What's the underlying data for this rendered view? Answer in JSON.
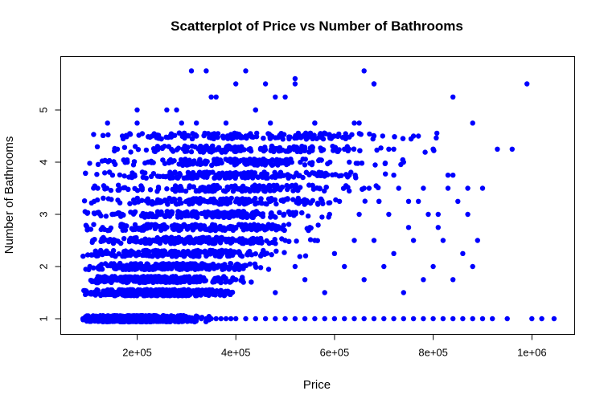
{
  "chart_data": {
    "type": "scatter",
    "title": "Scatterplot of Price vs Number of Bathrooms",
    "xlabel": "Price",
    "ylabel": "Number of Bathrooms",
    "xlim": [
      85000,
      1050000
    ],
    "ylim": [
      1,
      5.8
    ],
    "x_ticks": [
      200000,
      400000,
      600000,
      800000,
      1000000
    ],
    "x_tick_labels": [
      "2e+05",
      "4e+05",
      "6e+05",
      "8e+05",
      "1e+06"
    ],
    "y_ticks": [
      1,
      2,
      3,
      4,
      5
    ],
    "y_tick_labels": [
      "1",
      "2",
      "3",
      "4",
      "5"
    ],
    "point_color": "#0000ff",
    "grid": false,
    "legend": "none",
    "series": [
      {
        "x": [
          90000,
          95000,
          100000,
          105000,
          110000,
          115000,
          120000,
          130000,
          140000,
          150000,
          160000,
          170000,
          180000,
          190000,
          200000,
          210000,
          220000,
          230000,
          240000,
          250000,
          260000,
          270000,
          280000,
          290000,
          300000,
          310000,
          320000,
          330000,
          340000,
          350000,
          360000,
          370000,
          380000,
          390000,
          400000,
          420000,
          440000,
          460000,
          480000,
          500000,
          520000,
          540000,
          560000,
          580000,
          600000,
          620000,
          640000,
          660000,
          680000,
          700000,
          720000,
          740000,
          760000,
          780000,
          800000,
          820000,
          840000,
          860000,
          880000,
          900000,
          920000,
          950000,
          1000000,
          1020000,
          1045000,
          100000,
          120000,
          140000,
          160000,
          180000,
          200000,
          220000,
          240000,
          260000,
          280000,
          300000,
          320000,
          340000,
          360000,
          380000,
          400000,
          420000,
          440000,
          460000,
          480000,
          500000,
          520000,
          540000,
          560000,
          580000,
          600000,
          620000,
          640000,
          660000,
          680000,
          700000,
          720000,
          740000,
          760000,
          780000,
          800000,
          820000,
          840000,
          860000,
          880000,
          110000,
          130000,
          150000,
          170000,
          190000,
          210000,
          230000,
          250000,
          270000,
          290000,
          310000,
          330000,
          350000,
          370000,
          390000,
          410000,
          430000,
          450000,
          470000,
          490000,
          510000,
          530000,
          550000,
          570000,
          590000,
          610000,
          630000,
          650000,
          670000,
          690000,
          710000,
          730000,
          750000,
          770000,
          790000,
          810000,
          830000,
          850000,
          870000,
          890000,
          120000,
          150000,
          180000,
          210000,
          240000,
          270000,
          300000,
          330000,
          360000,
          390000,
          420000,
          450000,
          480000,
          510000,
          540000,
          570000,
          600000,
          630000,
          660000,
          690000,
          720000,
          750000,
          780000,
          810000,
          840000,
          870000,
          900000,
          930000,
          960000,
          140000,
          170000,
          200000,
          230000,
          260000,
          290000,
          320000,
          350000,
          380000,
          410000,
          440000,
          470000,
          500000,
          530000,
          560000,
          590000,
          620000,
          650000,
          680000,
          710000,
          740000,
          770000,
          800000,
          830000,
          160000,
          200000,
          240000,
          280000,
          320000,
          360000,
          400000,
          440000,
          480000,
          520000,
          560000,
          600000,
          640000,
          680000,
          720000,
          760000,
          800000,
          840000,
          880000,
          990000,
          310000,
          340000,
          420000,
          460000,
          520000,
          660000,
          680000
        ],
        "y": [
          1,
          1,
          1,
          1,
          1,
          1,
          1,
          1,
          1,
          1,
          1,
          1,
          1,
          1,
          1,
          1,
          1,
          1,
          1,
          1,
          1,
          1,
          1,
          1,
          1,
          1,
          1,
          1,
          1,
          1,
          1,
          1,
          1,
          1,
          1,
          1,
          1,
          1,
          1,
          1,
          1,
          1,
          1,
          1,
          1,
          1,
          1,
          1,
          1,
          1,
          1,
          1,
          1,
          1,
          1,
          1,
          1,
          1,
          1,
          1,
          1,
          1,
          1,
          1,
          1,
          1.5,
          1.75,
          1.5,
          1.75,
          2,
          1.5,
          2,
          1.75,
          2,
          2.25,
          2,
          2.5,
          2.25,
          2,
          2.5,
          1.75,
          2.5,
          2,
          2.25,
          1.5,
          2.5,
          2,
          1.75,
          2.5,
          1.5,
          2.25,
          2,
          2.5,
          1.75,
          2.5,
          2,
          2.25,
          1.5,
          2.5,
          1.75,
          2,
          2.5,
          1.75,
          2.25,
          2,
          2.5,
          2.75,
          2.25,
          3,
          2.5,
          2.75,
          3,
          2.5,
          3.25,
          2.75,
          3,
          3.25,
          2.5,
          3,
          2.75,
          3.5,
          3.25,
          3,
          2.75,
          3.5,
          3,
          3.25,
          2.75,
          3.5,
          3,
          3.25,
          3.75,
          3,
          3.5,
          3.25,
          3,
          3.5,
          2.75,
          3.25,
          3,
          2.75,
          3.5,
          3.25,
          3,
          2.5,
          3.5,
          3.75,
          4,
          3.5,
          4.25,
          3.75,
          4,
          4.25,
          3.75,
          4,
          4.5,
          4.25,
          3.75,
          4,
          4.25,
          3.75,
          4.5,
          4,
          3.5,
          3.25,
          3.75,
          3.25,
          3.5,
          3,
          3.75,
          3.5,
          3.5,
          4.25,
          4.25,
          4.75,
          4.5,
          4.75,
          4.5,
          5,
          4.75,
          4.5,
          5.25,
          4.75,
          4.5,
          5,
          4.75,
          5.25,
          4.5,
          4.75,
          4.5,
          4.25,
          4.75,
          4.5,
          4.25,
          4,
          4.5,
          4.25,
          3.75,
          4.25,
          5,
          4.5,
          5,
          4.75,
          5.25,
          5.5,
          5,
          5.25,
          5.5,
          4.75,
          4.25,
          4.75,
          5.5,
          4.25,
          4.5,
          4.25,
          5.25,
          4.75,
          5.5,
          5.75,
          5.75,
          5.75,
          5.5,
          5.6,
          5.75,
          5.5
        ]
      }
    ]
  }
}
